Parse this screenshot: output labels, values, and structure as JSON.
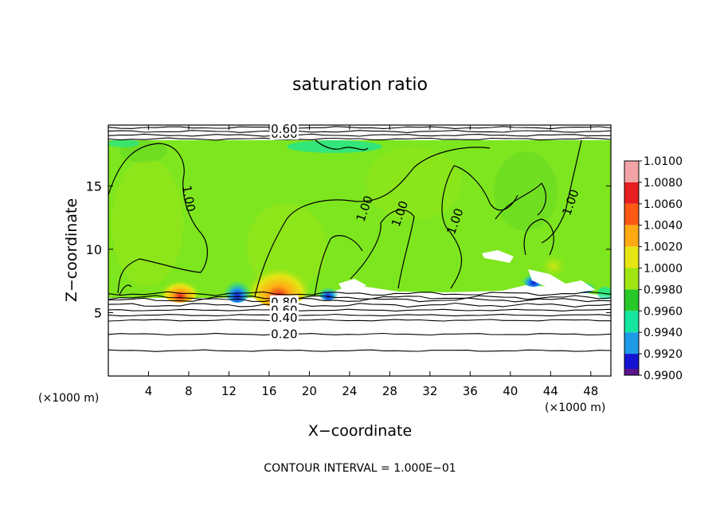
{
  "chart_data": {
    "type": "heatmap",
    "title": "saturation ratio",
    "xlabel": "X−coordinate",
    "ylabel": "Z−coordinate",
    "x_unit_left": "(×1000 m)",
    "x_unit_right": "(×1000 m)",
    "xlim": [
      0,
      50
    ],
    "ylim": [
      0,
      19.8
    ],
    "x_ticks": [
      4,
      8,
      12,
      16,
      20,
      24,
      28,
      32,
      36,
      40,
      44,
      48
    ],
    "y_ticks": [
      5,
      10,
      15
    ],
    "footer": "CONTOUR INTERVAL = 1.000E−01",
    "colorbar": {
      "levels": [
        "1.0100",
        "1.0080",
        "1.0060",
        "1.0040",
        "1.0020",
        "1.0000",
        "0.9980",
        "0.9960",
        "0.9940",
        "0.9920",
        "0.9900"
      ],
      "colors": [
        "#f2a3a6",
        "#e61e1e",
        "#ff5a14",
        "#ffaa14",
        "#e6e614",
        "#a0e614",
        "#28c828",
        "#14e6a0",
        "#1e9be6",
        "#1414d2",
        "#5a148c"
      ]
    },
    "contour_labels": [
      {
        "text": "1.00",
        "x": 8,
        "z": 14
      },
      {
        "text": "1.00",
        "x": 25.5,
        "z": 13.2
      },
      {
        "text": "1.00",
        "x": 29,
        "z": 12.8
      },
      {
        "text": "1.00",
        "x": 34.5,
        "z": 12.2
      },
      {
        "text": "1.00",
        "x": 46,
        "z": 13.7
      },
      {
        "text": "0.80",
        "x": 17.5,
        "z": 5.8
      },
      {
        "text": "0.60",
        "x": 17.5,
        "z": 5.2
      },
      {
        "text": "0.40",
        "x": 17.5,
        "z": 4.6
      },
      {
        "text": "0.20",
        "x": 17.5,
        "z": 3.3
      },
      {
        "text": "0.80",
        "x": 17.5,
        "z": 19.1
      },
      {
        "text": "0.60",
        "x": 17.5,
        "z": 19.5
      }
    ],
    "contour_levels_below": [
      6.5,
      6.2,
      6.0,
      5.6,
      5.2,
      4.8,
      4.4,
      3.3,
      2.0
    ],
    "contour_levels_above": [
      18.7,
      19.0,
      19.3,
      19.6
    ]
  }
}
